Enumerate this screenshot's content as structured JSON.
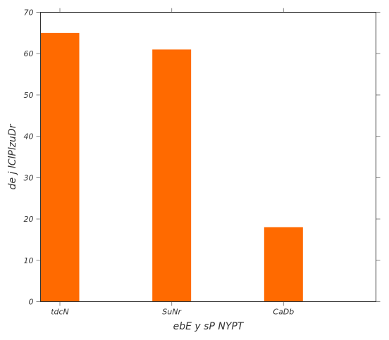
{
  "chart_data": {
    "type": "bar",
    "categories": [
      "tdcN",
      "SuNr",
      "CaDb"
    ],
    "values": [
      65,
      61,
      18
    ],
    "xlabel": "ebE y sP NYPT",
    "ylabel": "de j lClPlzuDr",
    "ylim": [
      0,
      70
    ],
    "yticks": [
      0,
      10,
      20,
      30,
      40,
      50,
      60,
      70
    ],
    "grid": false,
    "bar_color": "#ff6a00"
  }
}
